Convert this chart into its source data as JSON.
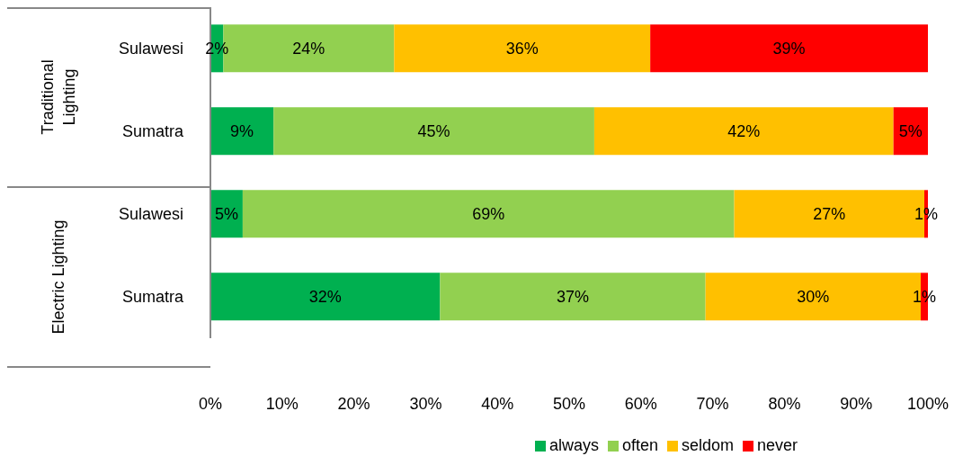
{
  "chart_data": {
    "type": "bar",
    "orientation": "horizontal",
    "stacked": true,
    "categories": [
      "Sulawesi",
      "Sumatra",
      "Sulawesi",
      "Sumatra"
    ],
    "annotations": [
      "Traditional Lighting",
      "Electric Lighting"
    ],
    "series": [
      {
        "name": "always",
        "color": "#00b050",
        "values": [
          1.8,
          8.8,
          4.5,
          32
        ],
        "value_labels": [
          "2%",
          "9%",
          "5%",
          "32%"
        ]
      },
      {
        "name": "often",
        "color": "#92d050",
        "values": [
          23.8,
          44.7,
          68.5,
          37
        ],
        "value_labels": [
          "24%",
          "45%",
          "69%",
          "37%"
        ]
      },
      {
        "name": "seldom",
        "color": "#ffc000",
        "values": [
          35.7,
          41.7,
          26.5,
          30
        ],
        "value_labels": [
          "36%",
          "42%",
          "27%",
          "30%"
        ]
      },
      {
        "name": "never",
        "color": "#ff0000",
        "values": [
          38.7,
          4.8,
          0.5,
          1
        ],
        "value_labels": [
          "39%",
          "5%",
          "1%",
          "1%"
        ]
      }
    ],
    "xlim": [
      0,
      100
    ],
    "xticks": [
      {
        "value": 0,
        "label": "0%"
      },
      {
        "value": 10,
        "label": "10%"
      },
      {
        "value": 20,
        "label": "20%"
      },
      {
        "value": 30,
        "label": "30%"
      },
      {
        "value": 40,
        "label": "40%"
      },
      {
        "value": 50,
        "label": "50%"
      },
      {
        "value": 60,
        "label": "60%"
      },
      {
        "value": 70,
        "label": "70%"
      },
      {
        "value": 80,
        "label": "80%"
      },
      {
        "value": 90,
        "label": "90%"
      },
      {
        "value": 100,
        "label": "100%"
      }
    ],
    "grid": false,
    "legend": "bottom"
  }
}
